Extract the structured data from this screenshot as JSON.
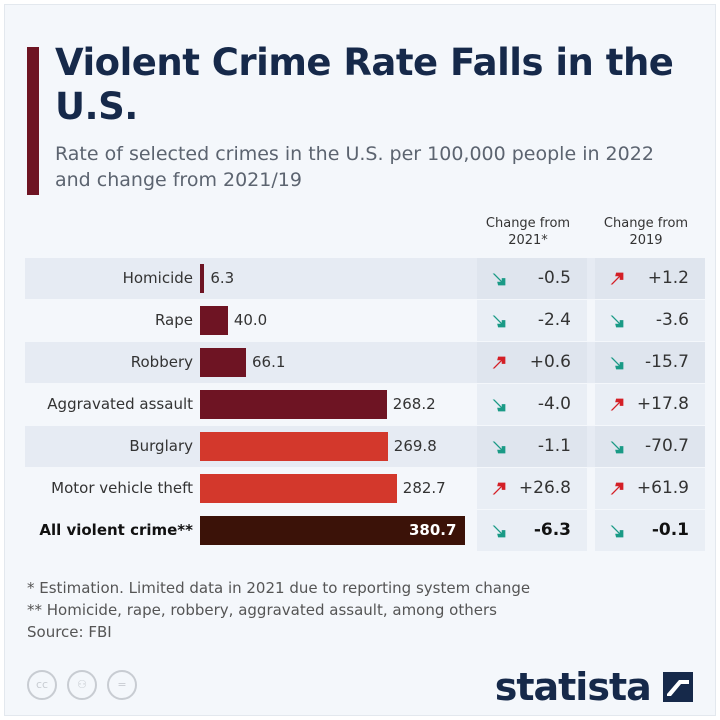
{
  "chart_data": {
    "type": "bar",
    "title": "Violent Crime Rate Falls in the U.S.",
    "subtitle": "Rate of selected crimes in the U.S. per 100,000 people in 2022 and change from 2021/19",
    "columns": {
      "c2021": "Change from 2021*",
      "c2019": "Change from 2019"
    },
    "rows": [
      {
        "category": "Homicide",
        "value": 6.3,
        "label": "6.3",
        "c2021": "-0.5",
        "c2019": "+1.2",
        "color": "#6e1423"
      },
      {
        "category": "Rape",
        "value": 40.0,
        "label": "40.0",
        "c2021": "-2.4",
        "c2019": "-3.6",
        "color": "#6e1423"
      },
      {
        "category": "Robbery",
        "value": 66.1,
        "label": "66.1",
        "c2021": "+0.6",
        "c2019": "-15.7",
        "color": "#6e1423"
      },
      {
        "category": "Aggravated assault",
        "value": 268.2,
        "label": "268.2",
        "c2021": "-4.0",
        "c2019": "+17.8",
        "color": "#6e1423"
      },
      {
        "category": "Burglary",
        "value": 269.8,
        "label": "269.8",
        "c2021": "-1.1",
        "c2019": "-70.7",
        "color": "#d3382c"
      },
      {
        "category": "Motor vehicle theft",
        "value": 282.7,
        "label": "282.7",
        "c2021": "+26.8",
        "c2019": "+61.9",
        "color": "#d3382c"
      },
      {
        "category": "All violent crime**",
        "value": 380.7,
        "label": "380.7",
        "c2021": "-6.3",
        "c2019": "-0.1",
        "color": "#3b1208"
      }
    ],
    "arrow_colors": {
      "up": "#d41f26",
      "down": "#1a9a86"
    }
  },
  "notes": [
    "*   Estimation. Limited data in 2021 due to reporting system change",
    "** Homicide, rape, robbery, aggravated assault, among others",
    "Source: FBI"
  ],
  "logo": "statista"
}
